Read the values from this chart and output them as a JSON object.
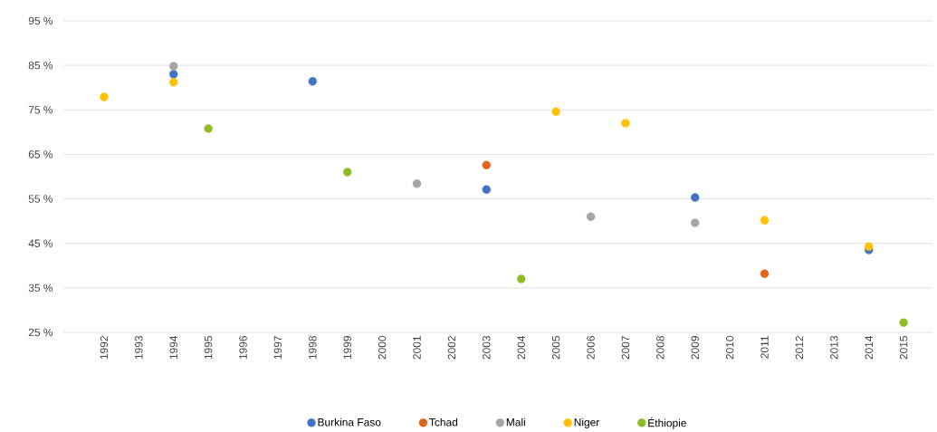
{
  "chart_data": {
    "type": "scatter",
    "categories": [
      "1992",
      "1993",
      "1994",
      "1995",
      "1996",
      "1997",
      "1998",
      "1999",
      "2000",
      "2001",
      "2002",
      "2003",
      "2004",
      "2005",
      "2006",
      "2007",
      "2008",
      "2009",
      "2010",
      "2011",
      "2012",
      "2013",
      "2014",
      "2015"
    ],
    "series": [
      {
        "name": "Burkina Faso",
        "color": "#4472c4",
        "values": [
          null,
          null,
          83,
          null,
          null,
          null,
          81.4,
          null,
          null,
          null,
          null,
          57.1,
          null,
          null,
          null,
          null,
          null,
          55.3,
          null,
          null,
          null,
          null,
          43.5,
          null
        ]
      },
      {
        "name": "Tchad",
        "color": "#e2641b",
        "values": [
          null,
          null,
          null,
          null,
          null,
          null,
          null,
          null,
          null,
          null,
          null,
          62.6,
          null,
          null,
          null,
          null,
          null,
          null,
          null,
          38.2,
          null,
          null,
          null,
          null
        ]
      },
      {
        "name": "Mali",
        "color": "#a5a5a5",
        "values": [
          null,
          null,
          84.8,
          null,
          null,
          null,
          null,
          null,
          null,
          58.4,
          null,
          null,
          null,
          null,
          51,
          null,
          null,
          49.6,
          null,
          null,
          null,
          null,
          null,
          null
        ]
      },
      {
        "name": "Niger",
        "color": "#ffc000",
        "values": [
          77.9,
          null,
          81.2,
          null,
          null,
          null,
          null,
          null,
          null,
          null,
          null,
          null,
          null,
          74.6,
          null,
          72,
          null,
          null,
          null,
          50.2,
          null,
          null,
          44.3,
          null
        ]
      },
      {
        "name": "Éthiopie",
        "color": "#8fbc24",
        "values": [
          null,
          null,
          null,
          70.8,
          null,
          null,
          null,
          61,
          null,
          null,
          null,
          null,
          37,
          null,
          null,
          null,
          null,
          null,
          null,
          null,
          null,
          null,
          null,
          27.2
        ]
      }
    ],
    "ylim": [
      25,
      95
    ],
    "yticks": [
      {
        "value": 25,
        "label": "25 %"
      },
      {
        "value": 35,
        "label": "35 %"
      },
      {
        "value": 45,
        "label": "45 %"
      },
      {
        "value": 55,
        "label": "55 %"
      },
      {
        "value": 65,
        "label": "65 %"
      },
      {
        "value": 75,
        "label": "75 %"
      },
      {
        "value": 85,
        "label": "85 %"
      },
      {
        "value": 95,
        "label": "95 %"
      }
    ],
    "grid": "y",
    "legend": "bottom"
  }
}
